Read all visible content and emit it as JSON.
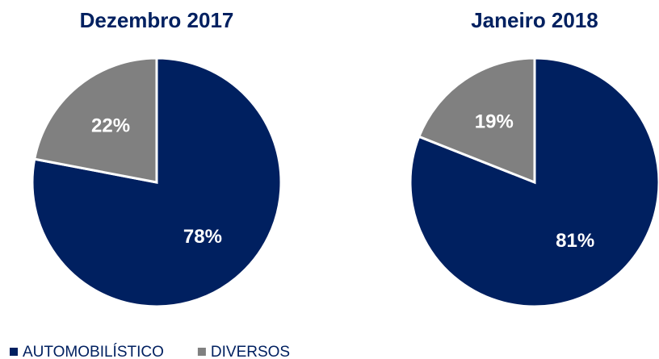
{
  "chart_data": [
    {
      "type": "pie",
      "title": "Dezembro 2017",
      "categories": [
        "AUTOMOBILÍSTICO",
        "DIVERSOS"
      ],
      "values": [
        78,
        22
      ],
      "value_labels": [
        "78%",
        "22%"
      ],
      "colors": [
        "#002060",
        "#808080"
      ]
    },
    {
      "type": "pie",
      "title": "Janeiro 2018",
      "categories": [
        "AUTOMOBILÍSTICO",
        "DIVERSOS"
      ],
      "values": [
        81,
        19
      ],
      "value_labels": [
        "81%",
        "19%"
      ],
      "colors": [
        "#002060",
        "#808080"
      ]
    }
  ]
}
